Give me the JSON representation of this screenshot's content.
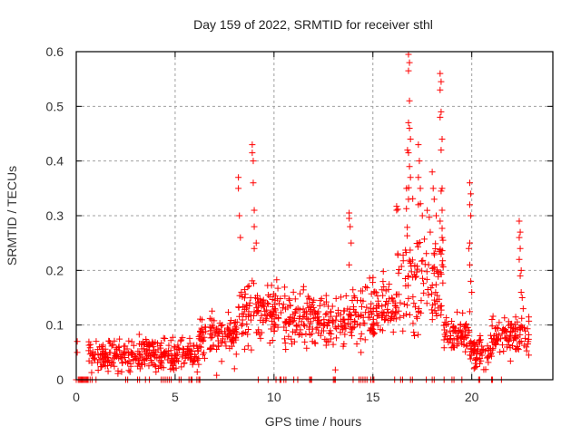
{
  "chart_data": {
    "type": "scatter",
    "title": "Day 159 of 2022, SRMTID for receiver sthl",
    "xlabel": "GPS time / hours",
    "ylabel": "SRMTID / TECUs",
    "xlim": [
      0,
      24.1
    ],
    "ylim": [
      0,
      0.6
    ],
    "xticks": [
      0,
      5,
      10,
      15,
      20
    ],
    "xtick_labels": [
      "0",
      "5",
      "10",
      "15",
      "20"
    ],
    "yticks": [
      0,
      0.1,
      0.2,
      0.3,
      0.4,
      0.5,
      0.6
    ],
    "ytick_labels": [
      "0",
      "0.1",
      "0.2",
      "0.3",
      "0.4",
      "0.5",
      "0.6"
    ],
    "grid": true,
    "legend": "none",
    "marker": "+",
    "color": "#ff0000",
    "series": [
      {
        "name": "SRMTID",
        "segments": [
          {
            "from": 0.6,
            "to": 6.2,
            "mean": 0.045,
            "spread": 0.02
          },
          {
            "from": 6.2,
            "to": 8.2,
            "mean": 0.085,
            "spread": 0.025
          },
          {
            "from": 8.2,
            "to": 10.5,
            "mean": 0.12,
            "spread": 0.04
          },
          {
            "from": 10.5,
            "to": 13.4,
            "mean": 0.11,
            "spread": 0.035
          },
          {
            "from": 13.4,
            "to": 15.2,
            "mean": 0.12,
            "spread": 0.04
          },
          {
            "from": 15.2,
            "to": 16.2,
            "mean": 0.13,
            "spread": 0.035
          },
          {
            "from": 16.2,
            "to": 18.6,
            "mean": 0.2,
            "spread": 0.08
          },
          {
            "from": 18.6,
            "to": 19.9,
            "mean": 0.085,
            "spread": 0.025
          },
          {
            "from": 19.9,
            "to": 21.0,
            "mean": 0.05,
            "spread": 0.02
          },
          {
            "from": 21.0,
            "to": 22.9,
            "mean": 0.08,
            "spread": 0.025
          }
        ],
        "peaks": [
          [
            0.05,
            0.07
          ],
          [
            0.05,
            0.05
          ],
          [
            8.2,
            0.37
          ],
          [
            8.2,
            0.35
          ],
          [
            8.25,
            0.3
          ],
          [
            8.3,
            0.26
          ],
          [
            8.9,
            0.43
          ],
          [
            8.9,
            0.415
          ],
          [
            8.95,
            0.4
          ],
          [
            8.95,
            0.36
          ],
          [
            9.0,
            0.31
          ],
          [
            9.0,
            0.28
          ],
          [
            9.1,
            0.25
          ],
          [
            9.0,
            0.24
          ],
          [
            13.8,
            0.305
          ],
          [
            13.8,
            0.295
          ],
          [
            13.85,
            0.28
          ],
          [
            13.9,
            0.25
          ],
          [
            13.8,
            0.21
          ],
          [
            16.2,
            0.31
          ],
          [
            16.8,
            0.595
          ],
          [
            16.85,
            0.58
          ],
          [
            16.8,
            0.565
          ],
          [
            16.85,
            0.51
          ],
          [
            16.8,
            0.47
          ],
          [
            16.85,
            0.46
          ],
          [
            16.9,
            0.44
          ],
          [
            16.75,
            0.42
          ],
          [
            16.8,
            0.415
          ],
          [
            16.85,
            0.39
          ],
          [
            16.9,
            0.37
          ],
          [
            16.7,
            0.35
          ],
          [
            16.8,
            0.33
          ],
          [
            17.3,
            0.43
          ],
          [
            17.35,
            0.4
          ],
          [
            17.3,
            0.37
          ],
          [
            17.4,
            0.35
          ],
          [
            17.3,
            0.32
          ],
          [
            17.5,
            0.3
          ],
          [
            18.0,
            0.38
          ],
          [
            18.05,
            0.35
          ],
          [
            18.1,
            0.33
          ],
          [
            18.2,
            0.3
          ],
          [
            17.9,
            0.27
          ],
          [
            18.4,
            0.56
          ],
          [
            18.45,
            0.545
          ],
          [
            18.4,
            0.53
          ],
          [
            18.45,
            0.49
          ],
          [
            18.4,
            0.48
          ],
          [
            18.5,
            0.44
          ],
          [
            18.45,
            0.42
          ],
          [
            18.5,
            0.35
          ],
          [
            18.45,
            0.345
          ],
          [
            18.5,
            0.31
          ],
          [
            18.4,
            0.29
          ],
          [
            18.5,
            0.26
          ],
          [
            18.45,
            0.23
          ],
          [
            18.5,
            0.21
          ],
          [
            19.9,
            0.36
          ],
          [
            19.95,
            0.34
          ],
          [
            19.9,
            0.32
          ],
          [
            19.95,
            0.3
          ],
          [
            19.9,
            0.25
          ],
          [
            19.85,
            0.24
          ],
          [
            19.9,
            0.21
          ],
          [
            19.95,
            0.18
          ],
          [
            20.0,
            0.16
          ],
          [
            22.4,
            0.29
          ],
          [
            22.45,
            0.27
          ],
          [
            22.4,
            0.26
          ],
          [
            22.45,
            0.24
          ],
          [
            22.4,
            0.22
          ],
          [
            22.5,
            0.2
          ],
          [
            22.45,
            0.19
          ],
          [
            22.5,
            0.16
          ],
          [
            22.55,
            0.15
          ],
          [
            22.6,
            0.13
          ],
          [
            13.1,
            0.018
          ],
          [
            14.4,
            0.05
          ],
          [
            7.1,
            0.008
          ],
          [
            8.0,
            0.02
          ]
        ],
        "zero_values_at_hours": [
          0.0,
          0.1,
          0.15,
          0.2,
          0.25,
          0.3,
          0.35,
          0.4,
          0.45,
          0.5,
          0.55,
          0.6,
          0.7,
          0.8,
          1.0,
          2.5,
          2.6,
          3.1,
          3.2,
          3.5,
          3.7,
          4.3,
          4.4,
          4.5,
          4.6,
          4.7,
          4.8,
          5.2,
          5.3,
          5.7,
          5.8,
          5.85,
          6.1,
          6.2,
          6.25,
          9.2,
          9.7,
          10.1,
          10.3,
          10.35,
          10.5,
          10.6,
          11.0,
          11.2,
          11.8,
          11.85,
          11.9,
          13.0,
          13.05,
          13.1,
          14.0,
          14.3,
          14.4,
          14.5,
          14.6,
          14.7,
          14.9,
          15.0,
          15.05,
          16.1,
          16.4,
          16.5,
          16.9,
          17.0,
          17.7,
          18.0,
          18.1,
          18.6,
          19.0,
          19.1,
          19.5,
          20.35,
          20.4,
          21.0,
          21.05,
          21.5
        ]
      }
    ]
  }
}
